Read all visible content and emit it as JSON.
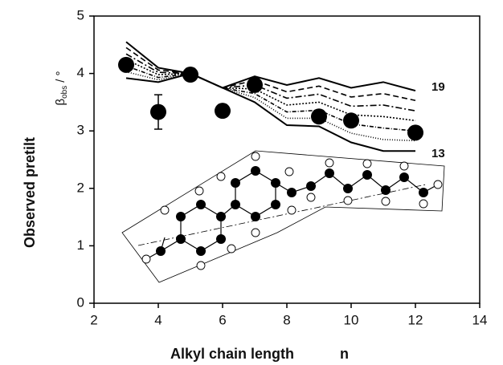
{
  "chart_data": {
    "type": "line",
    "xlabel": "Alkyl chain length",
    "xlabel_var": "n",
    "ylabel": "Observed pretilt",
    "ylabel_symbol": "β",
    "ylabel_subscript": "obs",
    "ylabel_unit": "/ °",
    "xlim": [
      2,
      14
    ],
    "xticks": [
      2,
      4,
      6,
      8,
      10,
      12,
      14
    ],
    "ylim": [
      0,
      5
    ],
    "yticks": [
      0,
      1,
      2,
      3,
      4,
      5
    ],
    "x": [
      3,
      4,
      5,
      6,
      7,
      8,
      9,
      10,
      11,
      12
    ],
    "series": [
      {
        "name": "19",
        "color": "#000000",
        "dash": "none",
        "values": [
          4.55,
          4.1,
          4.0,
          3.75,
          3.95,
          3.8,
          3.92,
          3.75,
          3.85,
          3.7
        ]
      },
      {
        "color": "#000000",
        "dash": "7,4",
        "values": [
          4.45,
          4.06,
          4.0,
          3.75,
          3.88,
          3.68,
          3.78,
          3.59,
          3.65,
          3.53
        ]
      },
      {
        "color": "#000000",
        "dash": "8,3,2,3",
        "values": [
          4.34,
          4.02,
          4.0,
          3.75,
          3.8,
          3.57,
          3.64,
          3.43,
          3.45,
          3.35
        ]
      },
      {
        "color": "#000000",
        "dash": "2,2",
        "values": [
          4.24,
          3.98,
          4.0,
          3.75,
          3.73,
          3.45,
          3.5,
          3.28,
          3.25,
          3.18
        ]
      },
      {
        "color": "#000000",
        "dash": "5,2,1,2",
        "values": [
          4.13,
          3.93,
          4.0,
          3.75,
          3.65,
          3.33,
          3.36,
          3.12,
          3.05,
          3.0
        ]
      },
      {
        "color": "#000000",
        "dash": "1,2",
        "values": [
          4.03,
          3.89,
          4.0,
          3.75,
          3.58,
          3.22,
          3.22,
          2.96,
          2.85,
          2.83
        ]
      },
      {
        "name": "13",
        "color": "#000000",
        "dash": "none",
        "values": [
          3.92,
          3.85,
          4.0,
          3.75,
          3.5,
          3.1,
          3.08,
          2.8,
          2.65,
          2.65
        ]
      }
    ],
    "points": {
      "color": "#000000",
      "x": [
        3,
        4,
        5,
        6,
        7,
        9,
        10,
        12
      ],
      "values": [
        4.15,
        3.33,
        3.98,
        3.35,
        3.8,
        3.25,
        3.18,
        2.97
      ],
      "errors": [
        null,
        0.3,
        null,
        0.07,
        0.12,
        null,
        null,
        null
      ]
    }
  }
}
